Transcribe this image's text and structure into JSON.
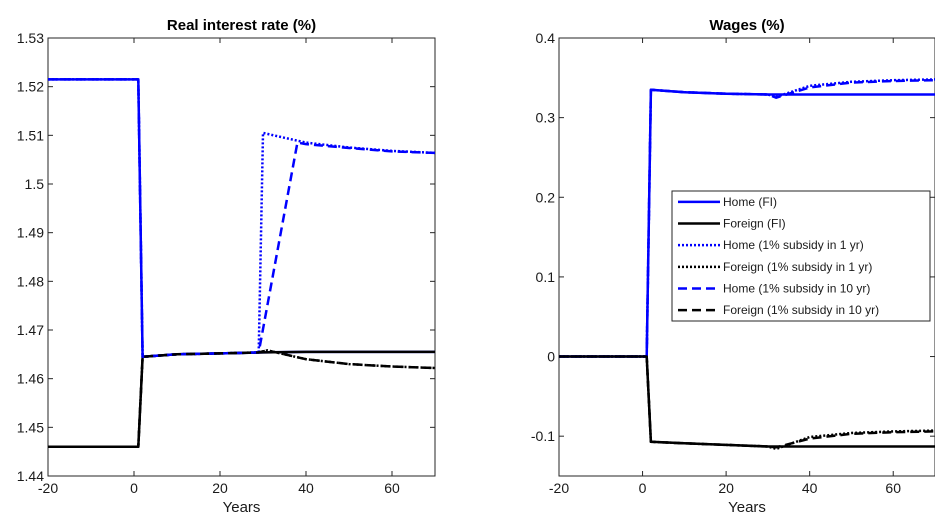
{
  "chart_data": [
    {
      "type": "line",
      "title": "Real interest rate (%)",
      "xlabel": "Years",
      "ylabel": "",
      "xlim": [
        -20,
        70
      ],
      "ylim": [
        1.44,
        1.53
      ],
      "xticks": [
        -20,
        0,
        20,
        40,
        60
      ],
      "xtick_labels": [
        "-20",
        "0",
        "20",
        "40",
        "60"
      ],
      "yticks": [
        1.44,
        1.45,
        1.46,
        1.47,
        1.48,
        1.49,
        1.5,
        1.51,
        1.52,
        1.53
      ],
      "ytick_labels": [
        "1.44",
        "1.45",
        "1.46",
        "1.47",
        "1.48",
        "1.49",
        "1.5",
        "1.51",
        "1.52",
        "1.53"
      ],
      "grid": false,
      "series": [
        {
          "color": "#0000ff",
          "style": "solid",
          "x": [
            -20,
            1,
            2,
            10,
            20,
            30,
            40,
            50,
            60,
            70
          ],
          "y": [
            1.5215,
            1.5215,
            1.4645,
            1.465,
            1.4652,
            1.4654,
            1.4655,
            1.4655,
            1.4655,
            1.4655
          ]
        },
        {
          "color": "#000000",
          "style": "solid",
          "x": [
            -20,
            1,
            2,
            10,
            20,
            30,
            40,
            50,
            60,
            70
          ],
          "y": [
            1.446,
            1.446,
            1.4645,
            1.465,
            1.4652,
            1.4654,
            1.4655,
            1.4655,
            1.4655,
            1.4655
          ]
        },
        {
          "color": "#0000ff",
          "style": "dotted",
          "x": [
            -20,
            1,
            2,
            10,
            20,
            29,
            30,
            35,
            40,
            50,
            60,
            70
          ],
          "y": [
            1.5215,
            1.5215,
            1.4645,
            1.465,
            1.4652,
            1.4654,
            1.5105,
            1.5095,
            1.5085,
            1.5075,
            1.5068,
            1.5064
          ]
        },
        {
          "color": "#000000",
          "style": "dotted",
          "x": [
            -20,
            1,
            2,
            10,
            20,
            29,
            31,
            35,
            40,
            50,
            60,
            70
          ],
          "y": [
            1.446,
            1.446,
            1.4645,
            1.465,
            1.4652,
            1.4654,
            1.4658,
            1.465,
            1.464,
            1.463,
            1.4625,
            1.4622
          ]
        },
        {
          "color": "#0000ff",
          "style": "dashed",
          "x": [
            -20,
            1,
            2,
            10,
            20,
            29,
            38,
            40,
            50,
            60,
            70
          ],
          "y": [
            1.5215,
            1.5215,
            1.4645,
            1.465,
            1.4652,
            1.4654,
            1.5085,
            1.5082,
            1.5074,
            1.5067,
            1.5064
          ]
        },
        {
          "color": "#000000",
          "style": "dashed",
          "x": [
            -20,
            1,
            2,
            10,
            20,
            29,
            31,
            35,
            40,
            50,
            60,
            70
          ],
          "y": [
            1.446,
            1.446,
            1.4645,
            1.465,
            1.4652,
            1.4654,
            1.4658,
            1.465,
            1.464,
            1.463,
            1.4625,
            1.4622
          ]
        }
      ]
    },
    {
      "type": "line",
      "title": "Wages (%)",
      "xlabel": "Years",
      "ylabel": "",
      "xlim": [
        -20,
        70
      ],
      "ylim": [
        -0.15,
        0.4
      ],
      "xticks": [
        -20,
        0,
        20,
        40,
        60
      ],
      "xtick_labels": [
        "-20",
        "0",
        "20",
        "40",
        "60"
      ],
      "yticks": [
        -0.1,
        0,
        0.1,
        0.2,
        0.3,
        0.4
      ],
      "ytick_labels": [
        "-0.1",
        "0",
        "0.1",
        "0.2",
        "0.3",
        "0.4"
      ],
      "grid": false,
      "legend_position": "middle-right",
      "series": [
        {
          "name": "Home (FI)",
          "color": "#0000ff",
          "style": "solid",
          "x": [
            -20,
            1,
            2,
            10,
            20,
            30,
            40,
            50,
            60,
            70
          ],
          "y": [
            0,
            0,
            0.335,
            0.332,
            0.33,
            0.329,
            0.329,
            0.329,
            0.329,
            0.329
          ]
        },
        {
          "name": "Foreign (FI)",
          "color": "#000000",
          "style": "solid",
          "x": [
            -20,
            1,
            2,
            10,
            20,
            30,
            40,
            50,
            60,
            70
          ],
          "y": [
            0,
            0,
            -0.107,
            -0.109,
            -0.111,
            -0.113,
            -0.113,
            -0.113,
            -0.113,
            -0.113
          ]
        },
        {
          "name": "Home (1% subsidy in 1 yr)",
          "color": "#0000ff",
          "style": "dotted",
          "x": [
            -20,
            1,
            2,
            10,
            20,
            30,
            32,
            40,
            50,
            60,
            70
          ],
          "y": [
            0,
            0,
            0.335,
            0.332,
            0.33,
            0.329,
            0.326,
            0.34,
            0.345,
            0.347,
            0.348
          ]
        },
        {
          "name": "Foreign (1% subsidy in 1 yr)",
          "color": "#000000",
          "style": "dotted",
          "x": [
            -20,
            1,
            2,
            10,
            20,
            30,
            32,
            40,
            50,
            60,
            70
          ],
          "y": [
            0,
            0,
            -0.107,
            -0.109,
            -0.111,
            -0.113,
            -0.116,
            -0.101,
            -0.096,
            -0.094,
            -0.093
          ]
        },
        {
          "name": "Home (1% subsidy in 10 yr)",
          "color": "#0000ff",
          "style": "dashed",
          "x": [
            -20,
            1,
            2,
            10,
            20,
            30,
            32,
            40,
            50,
            60,
            70
          ],
          "y": [
            0,
            0,
            0.335,
            0.332,
            0.33,
            0.329,
            0.325,
            0.338,
            0.344,
            0.346,
            0.347
          ]
        },
        {
          "name": "Foreign (1% subsidy in 10 yr)",
          "color": "#000000",
          "style": "dashed",
          "x": [
            -20,
            1,
            2,
            10,
            20,
            30,
            32,
            40,
            50,
            60,
            70
          ],
          "y": [
            0,
            0,
            -0.107,
            -0.109,
            -0.111,
            -0.113,
            -0.114,
            -0.103,
            -0.097,
            -0.095,
            -0.094
          ]
        }
      ]
    }
  ]
}
